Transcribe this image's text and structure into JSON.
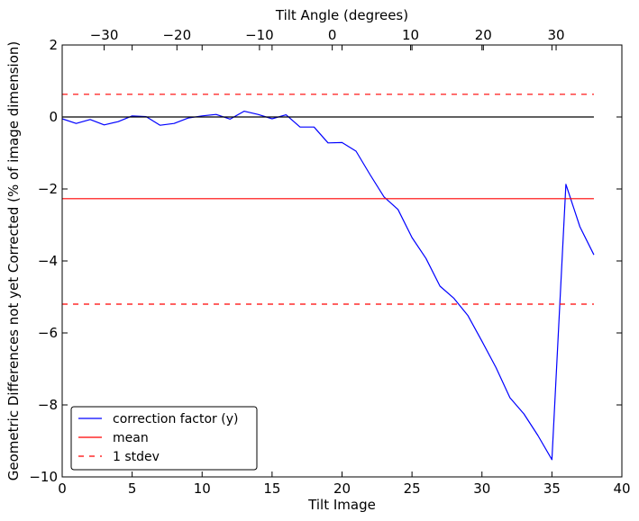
{
  "chart_data": {
    "type": "line",
    "title": "",
    "xlabel": "Tilt Image",
    "ylabel": "Geometric Differences not yet Corrected (% of image dimension)",
    "top_xlabel": "Tilt Angle (degrees)",
    "xlim": [
      0,
      40
    ],
    "ylim": [
      -10,
      2
    ],
    "x_ticks": [
      0,
      5,
      10,
      15,
      20,
      25,
      30,
      35,
      40
    ],
    "y_ticks": [
      -10,
      -8,
      -6,
      -4,
      -2,
      0,
      2
    ],
    "x_tick_labels": [
      "0",
      "5",
      "10",
      "15",
      "20",
      "25",
      "30",
      "35",
      "40"
    ],
    "y_tick_labels": [
      "−10",
      "−8",
      "−6",
      "−4",
      "−2",
      "0",
      "2"
    ],
    "top_axis": {
      "tick_positions_tilt_image": [
        3,
        8.2,
        14.1,
        19.3,
        24.9,
        30.1,
        35.3
      ],
      "tick_labels": [
        "−30",
        "−20",
        "−10",
        "0",
        "10",
        "20",
        "30"
      ]
    },
    "series": [
      {
        "name": "correction factor (y)",
        "color": "#0000ff",
        "style": "solid",
        "x": [
          0,
          1,
          2,
          3,
          4,
          5,
          6,
          7,
          8,
          9,
          10,
          11,
          12,
          13,
          14,
          15,
          16,
          17,
          18,
          19,
          20,
          21,
          22,
          23,
          24,
          25,
          26,
          27,
          28,
          29,
          30,
          31,
          32,
          33,
          34,
          35,
          36,
          37,
          38
        ],
        "y": [
          -0.05,
          -0.18,
          -0.07,
          -0.22,
          -0.13,
          0.03,
          0.01,
          -0.23,
          -0.18,
          -0.03,
          0.03,
          0.07,
          -0.06,
          0.16,
          0.07,
          -0.05,
          0.06,
          -0.28,
          -0.28,
          -0.72,
          -0.71,
          -0.95,
          -1.6,
          -2.22,
          -2.57,
          -3.35,
          -3.93,
          -4.7,
          -5.04,
          -5.52,
          -6.23,
          -6.96,
          -7.8,
          -8.25,
          -8.85,
          -9.52,
          -1.87,
          -3.05,
          -3.83
        ]
      },
      {
        "name": "zero line",
        "color": "#000000",
        "style": "solid",
        "in_legend": false,
        "x": [
          0,
          38
        ],
        "y": [
          0,
          0
        ]
      },
      {
        "name": "mean",
        "color": "#ff0000",
        "style": "solid",
        "x": [
          0,
          38
        ],
        "y": [
          -2.27,
          -2.27
        ]
      },
      {
        "name": "1 stdev",
        "color": "#ff0000",
        "style": "dashed",
        "x": [
          0,
          38
        ],
        "y": [
          0.63,
          0.63
        ]
      },
      {
        "name": "1 stdev (lower)",
        "color": "#ff0000",
        "style": "dashed",
        "in_legend": false,
        "x": [
          0,
          38
        ],
        "y": [
          -5.2,
          -5.2
        ]
      }
    ],
    "legend": {
      "location": "lower-left",
      "entries": [
        {
          "label": "correction factor (y)",
          "color": "#0000ff",
          "style": "solid"
        },
        {
          "label": "mean",
          "color": "#ff0000",
          "style": "solid"
        },
        {
          "label": "1 stdev",
          "color": "#ff0000",
          "style": "dashed"
        }
      ]
    }
  }
}
